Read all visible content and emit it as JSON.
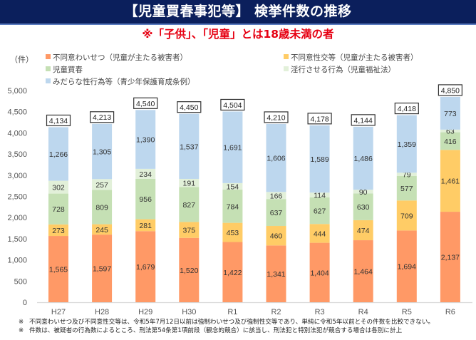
{
  "header": {
    "title": "【児童買春事犯等】 検挙件数の推移",
    "subtitle": "※「子供」、「児童」とは18歳未満の者"
  },
  "chart_data": {
    "type": "bar",
    "stacked": true,
    "title": "【児童買春事犯等】 検挙件数の推移",
    "ylabel": "（件）",
    "xlabel": "",
    "ylim": [
      0,
      5000
    ],
    "yticks": [
      0,
      500,
      1000,
      1500,
      2000,
      2500,
      3000,
      3500,
      4000,
      4500,
      5000
    ],
    "ytick_labels": [
      "0",
      "500",
      "1,000",
      "1,500",
      "2,000",
      "2,500",
      "3,000",
      "3,500",
      "4,000",
      "4,500",
      "5,000"
    ],
    "grid": false,
    "legend_position": "top",
    "categories": [
      "H27",
      "H28",
      "H29",
      "H30",
      "R1",
      "R2",
      "R3",
      "R4",
      "R5",
      "R6"
    ],
    "series": [
      {
        "name": "不同意わいせつ（児童が主たる被害者）",
        "color": "#ff9966",
        "values": [
          1565,
          1597,
          1679,
          1520,
          1422,
          1341,
          1404,
          1464,
          1694,
          2137
        ],
        "labels": [
          "1,565",
          "1,597",
          "1,679",
          "1,520",
          "1,422",
          "1,341",
          "1,404",
          "1,464",
          "1,694",
          "2,137"
        ]
      },
      {
        "name": "不同意性交等（児童が主たる被害者）",
        "color": "#ffcc66",
        "values": [
          273,
          245,
          281,
          375,
          453,
          460,
          444,
          474,
          709,
          1461
        ],
        "labels": [
          "273",
          "245",
          "281",
          "375",
          "453",
          "460",
          "444",
          "474",
          "709",
          "1,461"
        ]
      },
      {
        "name": "児童買春",
        "color": "#c5e0b4",
        "values": [
          728,
          809,
          956,
          827,
          784,
          637,
          627,
          630,
          577,
          416
        ],
        "labels": [
          "728",
          "809",
          "956",
          "827",
          "784",
          "637",
          "627",
          "630",
          "577",
          "416"
        ]
      },
      {
        "name": "淫行させる行為（児童福祉法）",
        "color": "#e2f0d9",
        "values": [
          302,
          257,
          234,
          191,
          154,
          166,
          114,
          90,
          79,
          63
        ],
        "labels": [
          "302",
          "257",
          "234",
          "191",
          "154",
          "166",
          "114",
          "90",
          "79",
          "63"
        ]
      },
      {
        "name": "みだらな性行為等（青少年保護育成条例）",
        "color": "#bdd7ee",
        "values": [
          1266,
          1305,
          1390,
          1537,
          1691,
          1606,
          1589,
          1486,
          1359,
          773
        ],
        "labels": [
          "1,266",
          "1,305",
          "1,390",
          "1,537",
          "1,691",
          "1,606",
          "1,589",
          "1,486",
          "1,359",
          "773"
        ]
      }
    ],
    "totals": [
      4134,
      4213,
      4540,
      4450,
      4504,
      4210,
      4178,
      4144,
      4418,
      4850
    ],
    "total_labels": [
      "4,134",
      "4,213",
      "4,540",
      "4,450",
      "4,504",
      "4,210",
      "4,178",
      "4,144",
      "4,418",
      "4,850"
    ]
  },
  "footnotes": {
    "mark": "※",
    "items": [
      "不同意わいせつ及び不同意性交等は、令和5年7月12日以前は強制わいせつ及び強制性交等であり、単純に令和5年以前とその件数を比較できない。",
      "件数は、被疑者の行為数によるところ、刑法第54条第1項前段（観念的競合）に該当し、刑法犯と特別法犯が競合する場合は各別に計上"
    ]
  }
}
